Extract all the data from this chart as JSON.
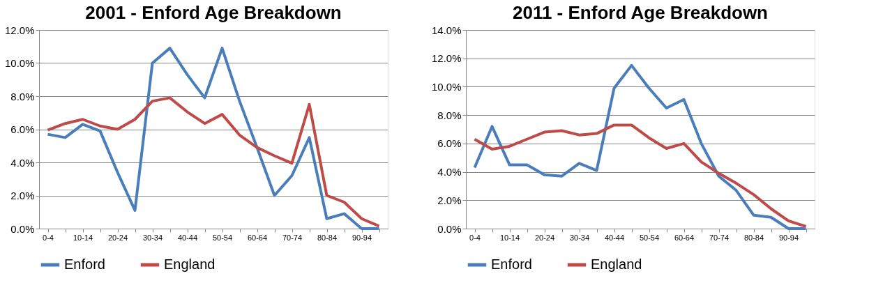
{
  "chart_data": [
    {
      "type": "line",
      "title": "2001 - Enford Age Breakdown",
      "categories": [
        "0-4",
        null,
        "10-14",
        null,
        "20-24",
        null,
        "30-34",
        null,
        "40-44",
        null,
        "50-54",
        null,
        "60-64",
        null,
        "70-74",
        null,
        "80-84",
        null,
        "90-94",
        null
      ],
      "series": [
        {
          "name": "Enford",
          "color": "#4a7ebb",
          "values": [
            5.7,
            5.5,
            6.3,
            5.9,
            3.4,
            1.1,
            10.0,
            10.9,
            9.3,
            7.9,
            10.9,
            7.7,
            4.9,
            2.0,
            3.2,
            5.5,
            0.6,
            0.9,
            0.0,
            0.0
          ]
        },
        {
          "name": "England",
          "color": "#be4b48",
          "values": [
            5.95,
            6.35,
            6.6,
            6.2,
            6.0,
            6.6,
            7.7,
            7.9,
            7.05,
            6.35,
            6.9,
            5.65,
            4.9,
            4.4,
            3.95,
            7.5,
            2.0,
            1.6,
            0.6,
            0.15
          ]
        }
      ],
      "ylim": [
        0,
        12
      ],
      "yticks": [
        {
          "value": 0,
          "label": "0.0%"
        },
        {
          "value": 2,
          "label": "2.0%"
        },
        {
          "value": 4,
          "label": "4.0%"
        },
        {
          "value": 6,
          "label": "6.0%"
        },
        {
          "value": 8,
          "label": "8.0%"
        },
        {
          "value": 10,
          "label": "10.0%"
        },
        {
          "value": 12,
          "label": "12.0%"
        }
      ],
      "grid": "y",
      "legend": "bottom"
    },
    {
      "type": "line",
      "title": "2011 - Enford Age Breakdown",
      "categories": [
        "0-4",
        null,
        "10-14",
        null,
        "20-24",
        null,
        "30-34",
        null,
        "40-44",
        null,
        "50-54",
        null,
        "60-64",
        null,
        "70-74",
        null,
        "80-84",
        null,
        "90-94",
        null
      ],
      "series": [
        {
          "name": "Enford",
          "color": "#4a7ebb",
          "values": [
            4.3,
            7.2,
            4.5,
            4.5,
            3.8,
            3.7,
            4.6,
            4.1,
            9.9,
            11.5,
            9.9,
            8.5,
            9.1,
            6.0,
            3.7,
            2.7,
            0.95,
            0.8,
            0.0,
            0.0
          ]
        },
        {
          "name": "England",
          "color": "#be4b48",
          "values": [
            6.3,
            5.6,
            5.8,
            6.3,
            6.8,
            6.9,
            6.6,
            6.7,
            7.3,
            7.3,
            6.4,
            5.65,
            6.0,
            4.7,
            3.9,
            3.2,
            2.4,
            1.4,
            0.55,
            0.15
          ]
        }
      ],
      "ylim": [
        0,
        14
      ],
      "yticks": [
        {
          "value": 0,
          "label": "0.0%"
        },
        {
          "value": 2,
          "label": "2.0%"
        },
        {
          "value": 4,
          "label": "4.0%"
        },
        {
          "value": 6,
          "label": "6.0%"
        },
        {
          "value": 8,
          "label": "8.0%"
        },
        {
          "value": 10,
          "label": "10.0%"
        },
        {
          "value": 12,
          "label": "12.0%"
        },
        {
          "value": 14,
          "label": "14.0%"
        }
      ],
      "grid": "y",
      "legend": "bottom"
    }
  ]
}
